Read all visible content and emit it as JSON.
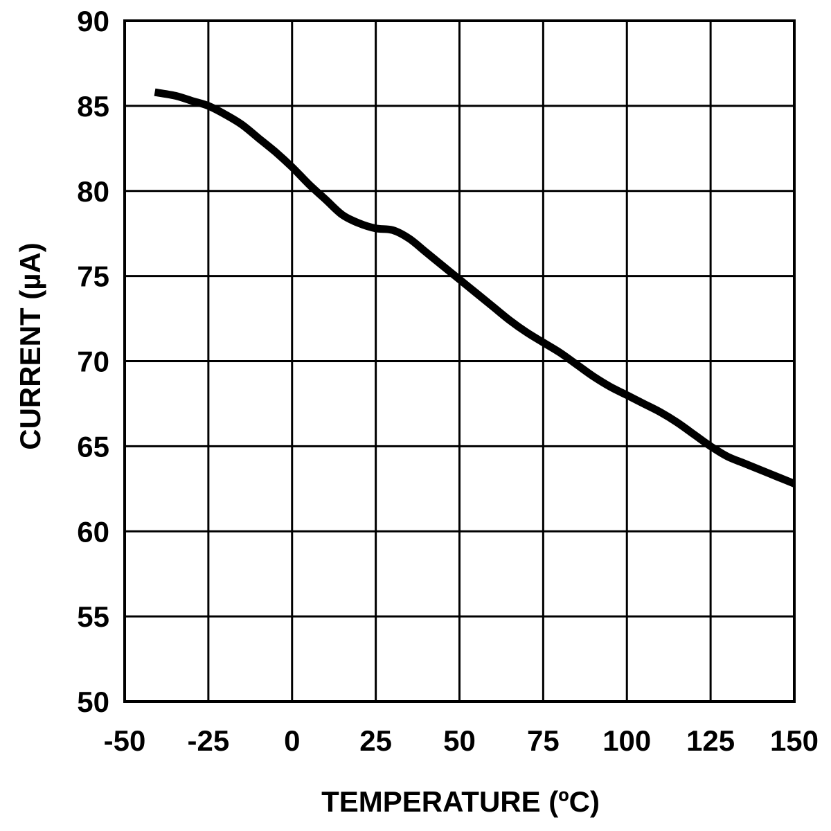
{
  "chart_data": {
    "type": "line",
    "title": "",
    "xlabel": "TEMPERATURE (ºC)",
    "ylabel": "CURRENT (µA)",
    "xlim": [
      -50,
      150
    ],
    "ylim": [
      50,
      90
    ],
    "xticks": [
      -50,
      -25,
      0,
      25,
      50,
      75,
      100,
      125,
      150
    ],
    "yticks": [
      50,
      55,
      60,
      65,
      70,
      75,
      80,
      85,
      90
    ],
    "xtick_labels": [
      "-50",
      "-25",
      "0",
      "25",
      "50",
      "75",
      "100",
      "125",
      "150"
    ],
    "ytick_labels": [
      "50",
      "55",
      "60",
      "65",
      "70",
      "75",
      "80",
      "85",
      "90"
    ],
    "grid": true,
    "legend": "none",
    "series": [
      {
        "color": "#000000",
        "x": [
          -41,
          -35,
          -30,
          -25,
          -20,
          -15,
          -10,
          -5,
          0,
          5,
          10,
          15,
          20,
          25,
          30,
          35,
          40,
          45,
          50,
          55,
          60,
          65,
          70,
          75,
          80,
          85,
          90,
          95,
          100,
          105,
          110,
          115,
          120,
          125,
          130,
          135,
          140,
          145,
          150
        ],
        "y": [
          85.8,
          85.6,
          85.3,
          85.0,
          84.5,
          83.9,
          83.1,
          82.3,
          81.4,
          80.4,
          79.5,
          78.6,
          78.1,
          77.8,
          77.7,
          77.2,
          76.4,
          75.6,
          74.8,
          74.0,
          73.2,
          72.4,
          71.7,
          71.1,
          70.5,
          69.8,
          69.1,
          68.5,
          68.0,
          67.5,
          67.0,
          66.4,
          65.7,
          65.0,
          64.4,
          64.0,
          63.6,
          63.2,
          62.8
        ]
      }
    ]
  }
}
